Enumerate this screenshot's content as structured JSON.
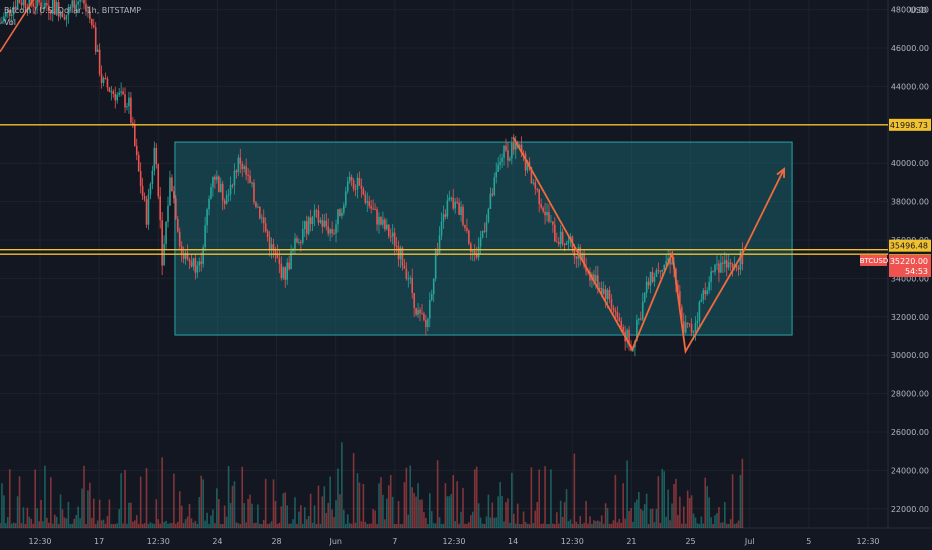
{
  "legend": {
    "title": "Bitcoin / U.S. Dollar, 1h, BITSTAMP",
    "sub": "Vol"
  },
  "colors": {
    "bg": "#131722",
    "up": "#26a69a",
    "down": "#ef5350",
    "level": "#f2c12e",
    "pattern": "#f06a3e",
    "range_fill": "#1b6f7a",
    "range_stroke": "#26a6a8",
    "grid": "#1e222d",
    "text": "#b2b5be"
  },
  "chart_data": {
    "type": "candlestick",
    "symbol": "BTCUSD",
    "axis_currency": "USD",
    "y_ticks": [
      22000,
      24000,
      26000,
      28000,
      30000,
      32000,
      34000,
      36000,
      38000,
      40000,
      42000,
      44000,
      46000,
      48000
    ],
    "ylim": [
      21000,
      48500
    ],
    "x_tick_labels": [
      "12:30",
      "17",
      "12:30",
      "24",
      "28",
      "Jun",
      "7",
      "12:30",
      "14",
      "12:30",
      "21",
      "25",
      "Jul",
      "5",
      "12:30"
    ],
    "price_levels": [
      {
        "label": "41998.73",
        "value": 41998.73
      },
      {
        "label": "35496.48",
        "value": 35496.48
      },
      {
        "label": "35259.39",
        "value": 35259.39
      }
    ],
    "current": {
      "symbol": "BTCUSD",
      "price": "35220.00",
      "countdown": "54:53"
    },
    "range_box": {
      "top": 41100,
      "bottom": 31050
    },
    "pattern_path": [
      {
        "t": 0.578,
        "v": 41350
      },
      {
        "t": 0.712,
        "v": 30300
      },
      {
        "t": 0.757,
        "v": 35300
      },
      {
        "t": 0.772,
        "v": 30200
      },
      {
        "t": 0.835,
        "v": 35200
      },
      {
        "t": 0.883,
        "v": 39700
      }
    ],
    "early_arrow": [
      {
        "t": 0.0,
        "v": 45800
      },
      {
        "t": 0.039,
        "v": 48600
      }
    ],
    "price_series": [
      {
        "t": 0.0,
        "v": 47300
      },
      {
        "t": 0.02,
        "v": 48500
      },
      {
        "t": 0.06,
        "v": 48200
      },
      {
        "t": 0.075,
        "v": 47800
      },
      {
        "t": 0.09,
        "v": 48600
      },
      {
        "t": 0.105,
        "v": 46800
      },
      {
        "t": 0.115,
        "v": 44200
      },
      {
        "t": 0.13,
        "v": 43600
      },
      {
        "t": 0.145,
        "v": 43100
      },
      {
        "t": 0.155,
        "v": 39800
      },
      {
        "t": 0.165,
        "v": 37200
      },
      {
        "t": 0.175,
        "v": 41200
      },
      {
        "t": 0.183,
        "v": 34800
      },
      {
        "t": 0.192,
        "v": 39400
      },
      {
        "t": 0.205,
        "v": 35200
      },
      {
        "t": 0.225,
        "v": 34600
      },
      {
        "t": 0.24,
        "v": 39600
      },
      {
        "t": 0.252,
        "v": 38200
      },
      {
        "t": 0.27,
        "v": 40200
      },
      {
        "t": 0.29,
        "v": 37800
      },
      {
        "t": 0.305,
        "v": 35600
      },
      {
        "t": 0.32,
        "v": 34100
      },
      {
        "t": 0.335,
        "v": 36100
      },
      {
        "t": 0.355,
        "v": 37200
      },
      {
        "t": 0.375,
        "v": 36400
      },
      {
        "t": 0.395,
        "v": 39300
      },
      {
        "t": 0.41,
        "v": 38300
      },
      {
        "t": 0.425,
        "v": 37100
      },
      {
        "t": 0.445,
        "v": 35900
      },
      {
        "t": 0.46,
        "v": 34100
      },
      {
        "t": 0.47,
        "v": 32200
      },
      {
        "t": 0.48,
        "v": 31400
      },
      {
        "t": 0.492,
        "v": 35600
      },
      {
        "t": 0.505,
        "v": 38100
      },
      {
        "t": 0.52,
        "v": 37400
      },
      {
        "t": 0.535,
        "v": 35000
      },
      {
        "t": 0.55,
        "v": 37600
      },
      {
        "t": 0.565,
        "v": 40500
      },
      {
        "t": 0.585,
        "v": 40700
      },
      {
        "t": 0.605,
        "v": 38500
      },
      {
        "t": 0.625,
        "v": 36200
      },
      {
        "t": 0.645,
        "v": 35700
      },
      {
        "t": 0.665,
        "v": 34200
      },
      {
        "t": 0.685,
        "v": 33100
      },
      {
        "t": 0.7,
        "v": 31400
      },
      {
        "t": 0.712,
        "v": 30400
      },
      {
        "t": 0.728,
        "v": 33500
      },
      {
        "t": 0.742,
        "v": 34700
      },
      {
        "t": 0.757,
        "v": 35100
      },
      {
        "t": 0.768,
        "v": 31500
      },
      {
        "t": 0.78,
        "v": 31300
      },
      {
        "t": 0.795,
        "v": 33700
      },
      {
        "t": 0.812,
        "v": 34900
      },
      {
        "t": 0.825,
        "v": 34300
      },
      {
        "t": 0.836,
        "v": 35200
      }
    ]
  }
}
